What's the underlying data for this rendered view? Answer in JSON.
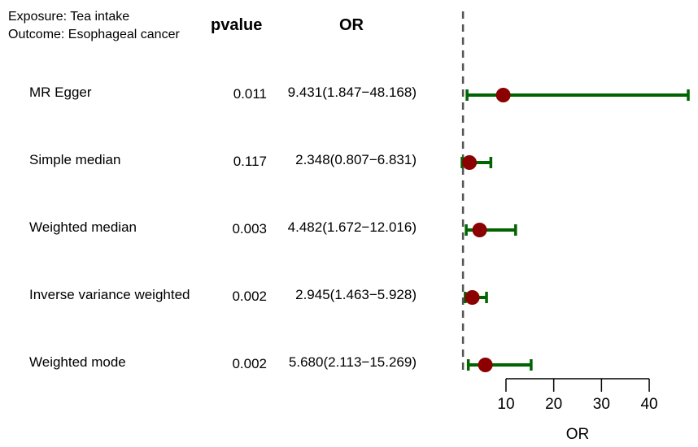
{
  "header": {
    "exposure": "Exposure: Tea intake",
    "outcome": "Outcome: Esophageal cancer",
    "pvalue_title": "pvalue",
    "or_title": "OR"
  },
  "rows": [
    {
      "method": "MR Egger",
      "pvalue": "0.011",
      "or_ci": "9.431(1.847−48.168)"
    },
    {
      "method": "Simple median",
      "pvalue": "0.117",
      "or_ci": "2.348(0.807−6.831)"
    },
    {
      "method": "Weighted median",
      "pvalue": "0.003",
      "or_ci": "4.482(1.672−12.016)"
    },
    {
      "method": "Inverse variance weighted",
      "pvalue": "0.002",
      "or_ci": "2.945(1.463−5.928)"
    },
    {
      "method": "Weighted mode",
      "pvalue": "0.002",
      "or_ci": "5.680(2.113−15.269)"
    }
  ],
  "colors": {
    "ci": "#006400",
    "point": "#8b0000",
    "refline": "#555555"
  },
  "chart_data": {
    "type": "scatter",
    "categories": [
      "MR Egger",
      "Simple median",
      "Weighted median",
      "Inverse variance weighted",
      "Weighted mode"
    ],
    "or": [
      9.431,
      2.348,
      4.482,
      2.945,
      5.68
    ],
    "lower": [
      1.847,
      0.807,
      1.672,
      1.463,
      2.113
    ],
    "upper": [
      48.168,
      6.831,
      12.016,
      5.928,
      15.269
    ],
    "reference_line": 1,
    "xlabel": "OR",
    "xticks": [
      10,
      20,
      30,
      40
    ],
    "xlim": [
      0.807,
      48.168
    ]
  }
}
